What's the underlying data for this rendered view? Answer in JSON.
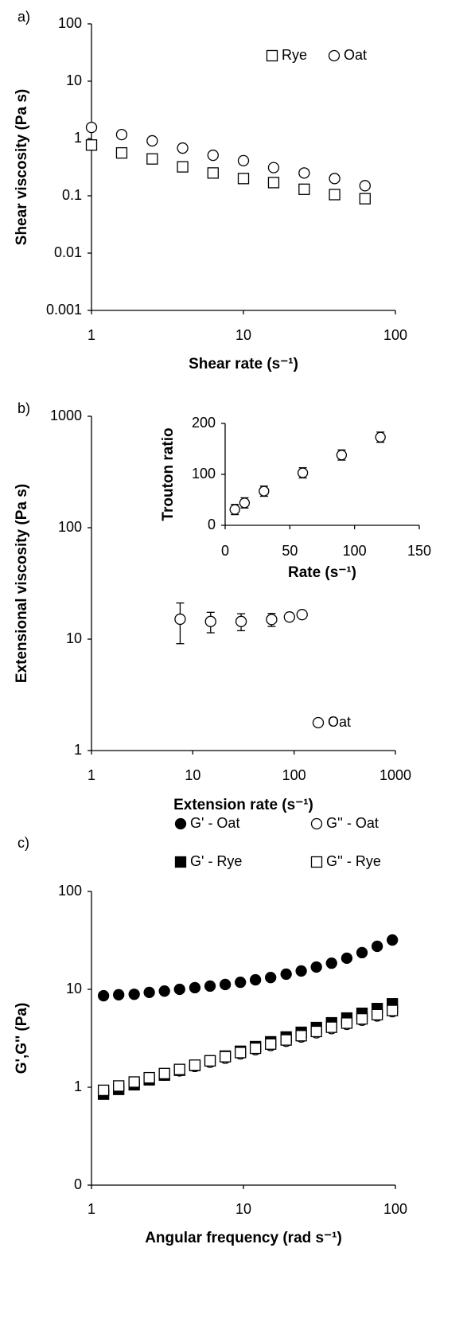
{
  "chart_data": [
    {
      "type": "scatter",
      "panel_label": "a)",
      "x_label": "Shear rate (s⁻¹)",
      "y_label": "Shear viscosity (Pa s)",
      "log_x": true,
      "log_y": true,
      "xlim": [
        1,
        100
      ],
      "xticks": [
        1,
        10,
        100
      ],
      "ylim": [
        0.001,
        100
      ],
      "yticks": [
        0.001,
        0.01,
        0.1,
        1,
        10,
        100
      ],
      "legend": "top-right",
      "x": [
        1,
        1.58,
        2.51,
        3.98,
        6.31,
        10,
        15.8,
        25.1,
        39.8,
        63.1
      ],
      "series": [
        {
          "name": "Rye",
          "color": "#000000",
          "marker": "square",
          "filled": false,
          "values": [
            0.77,
            0.56,
            0.44,
            0.32,
            0.25,
            0.2,
            0.17,
            0.13,
            0.105,
            0.089
          ]
        },
        {
          "name": "Oat",
          "color": "#000000",
          "marker": "circle",
          "filled": false,
          "values": [
            1.56,
            1.17,
            0.91,
            0.68,
            0.51,
            0.41,
            0.31,
            0.25,
            0.2,
            0.15
          ]
        }
      ]
    },
    {
      "type": "scatter",
      "panel_label": "b)",
      "x_label": "Extension rate (s⁻¹)",
      "y_label": "Extensional viscosity (Pa s)",
      "log_x": true,
      "log_y": true,
      "xlim": [
        1,
        1000
      ],
      "xticks": [
        1,
        10,
        100,
        1000
      ],
      "ylim": [
        1,
        1000
      ],
      "yticks": [
        1,
        10,
        100,
        1000
      ],
      "legend": "bottom-right",
      "series": [
        {
          "name": "Oat",
          "color": "#000000",
          "marker": "circle",
          "filled": false,
          "x": [
            7.5,
            15,
            30,
            60,
            90,
            120
          ],
          "values": [
            15.1,
            14.4,
            14.4,
            15,
            15.8,
            16.6
          ],
          "errors": [
            6,
            3,
            2.5,
            2,
            1,
            1
          ]
        }
      ]
    },
    {
      "type": "scatter",
      "x_label": "Rate (s⁻¹)",
      "y_label": "Trouton ratio",
      "log_x": false,
      "log_y": false,
      "xlim": [
        0,
        150
      ],
      "xticks": [
        0,
        50,
        100,
        150
      ],
      "ylim": [
        0,
        200
      ],
      "yticks": [
        0,
        100,
        200
      ],
      "series": [
        {
          "color": "#000000",
          "marker": "circle",
          "filled": false,
          "x": [
            7.5,
            15,
            30,
            60,
            90,
            120
          ],
          "values": [
            31,
            44,
            67,
            103,
            138,
            173
          ],
          "errors": [
            10,
            10,
            10,
            10,
            10,
            10
          ]
        }
      ]
    },
    {
      "type": "scatter",
      "panel_label": "c)",
      "x_label": "Angular frequency (rad s⁻¹)",
      "y_label": "G',G'' (Pa)",
      "log_x": true,
      "log_y": true,
      "xlim": [
        1,
        100
      ],
      "xticks": [
        1,
        10,
        100
      ],
      "ylim": [
        0.1,
        100
      ],
      "yticks": [
        {
          "value": 0.1,
          "label": "0"
        },
        1,
        10,
        100
      ],
      "legend": "top",
      "x": [
        1.2,
        1.51,
        1.91,
        2.4,
        3.02,
        3.8,
        4.79,
        6.03,
        7.59,
        9.55,
        12,
        15.1,
        19.1,
        24,
        30.2,
        38,
        47.9,
        60.3,
        75.9,
        95.5
      ],
      "series": [
        {
          "name": "G' - Oat",
          "color": "#000000",
          "marker": "circle",
          "filled": true,
          "values": [
            8.6,
            8.8,
            8.9,
            9.3,
            9.6,
            10,
            10.4,
            10.8,
            11.2,
            11.8,
            12.5,
            13.2,
            14.3,
            15.4,
            16.9,
            18.5,
            20.8,
            23.7,
            27.5,
            31.9
          ]
        },
        {
          "name": "G'' - Oat",
          "color": "#000000",
          "marker": "circle",
          "filled": false,
          "values": [
            0.9,
            0.99,
            1.09,
            1.21,
            1.33,
            1.47,
            1.63,
            1.8,
            1.98,
            2.19,
            2.42,
            2.67,
            2.95,
            3.26,
            3.6,
            3.97,
            4.39,
            4.84,
            5.35,
            5.91
          ]
        },
        {
          "name": "G' - Rye",
          "color": "#000000",
          "marker": "square",
          "filled": true,
          "values": [
            0.85,
            0.95,
            1.06,
            1.19,
            1.33,
            1.49,
            1.67,
            1.86,
            2.08,
            2.33,
            2.6,
            2.91,
            3.26,
            3.64,
            4.07,
            4.55,
            5.09,
            5.69,
            6.36,
            7.11
          ]
        },
        {
          "name": "G'' - Rye",
          "color": "#000000",
          "marker": "square",
          "filled": false,
          "values": [
            0.93,
            1.03,
            1.13,
            1.25,
            1.38,
            1.52,
            1.68,
            1.86,
            2.05,
            2.26,
            2.5,
            2.76,
            3.04,
            3.36,
            3.71,
            4.1,
            4.52,
            4.99,
            5.51,
            6.08
          ]
        }
      ]
    }
  ]
}
